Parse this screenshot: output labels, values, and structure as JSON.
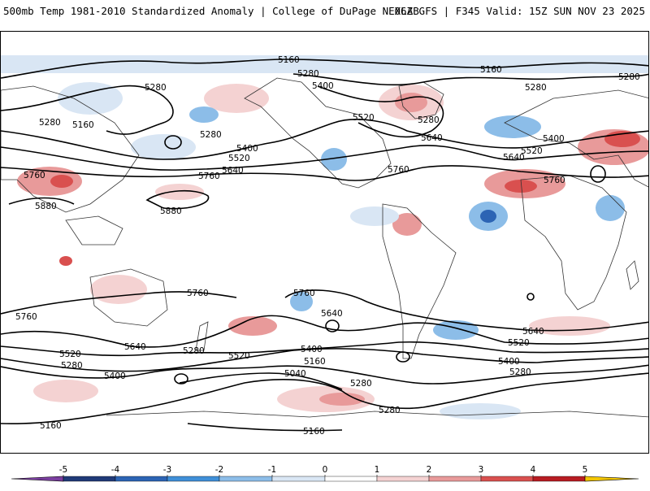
{
  "header": {
    "title_left": "500mb Temp 1981-2010 Standardized Anomaly | College of DuPage NEXLAB",
    "title_right": "06Z GFS | F345 Valid: 15Z SUN NOV 23 2025"
  },
  "map": {
    "contour_labels": {
      "top_5160": "5160",
      "top_right_5160": "5160",
      "l_5280_a": "5280",
      "l_5280_b": "5280",
      "l_5280_c": "5280",
      "l_5280_d": "5280",
      "l_5400_a": "5400",
      "l_5160_b": "5160",
      "l_5520_a": "5520",
      "l_5280_e": "5280",
      "l_5640_a": "5640",
      "l_5400_b": "5400",
      "l_5520_b": "5520",
      "l_5640_b": "5640",
      "l_5760_a": "5760",
      "l_5760_b": "5760",
      "l_5880_a": "5880",
      "l_5880_b": "5880",
      "l_5760_c": "5760",
      "l_5520_c": "5520",
      "l_5400_c": "5400",
      "l_5640_c": "5640",
      "l_5760_d": "5760",
      "l_5760_e": "5760",
      "l_5760_f": "5760",
      "l_5760_g": "5760",
      "l_5640_d": "5640",
      "l_5640_e": "5640",
      "l_5640_f": "5640",
      "l_5520_d": "5520",
      "l_5520_e": "5520",
      "l_5520_f": "5520",
      "l_5400_d": "5400",
      "l_5400_e": "5400",
      "l_5400_f": "5400",
      "l_5280_f": "5280",
      "l_5280_g": "5280",
      "l_5280_h": "5280",
      "l_5280_i": "5280",
      "l_5280_j": "5280",
      "l_5160_c": "5160",
      "l_5160_d": "5160",
      "l_5160_e": "5160",
      "l_5040_a": "5040"
    }
  },
  "colorbar": {
    "ticks": [
      "-5",
      "-4",
      "-3",
      "-2",
      "-1",
      "0",
      "1",
      "2",
      "3",
      "4",
      "5"
    ],
    "colors": [
      "#7b3fa0",
      "#203a78",
      "#2c64b4",
      "#3f8fd8",
      "#8cbde8",
      "#d9e6f4",
      "#ffffff",
      "#f4d2d2",
      "#e89a9a",
      "#d9504f",
      "#b81c22",
      "#7d0d12",
      "#f2c500"
    ]
  }
}
